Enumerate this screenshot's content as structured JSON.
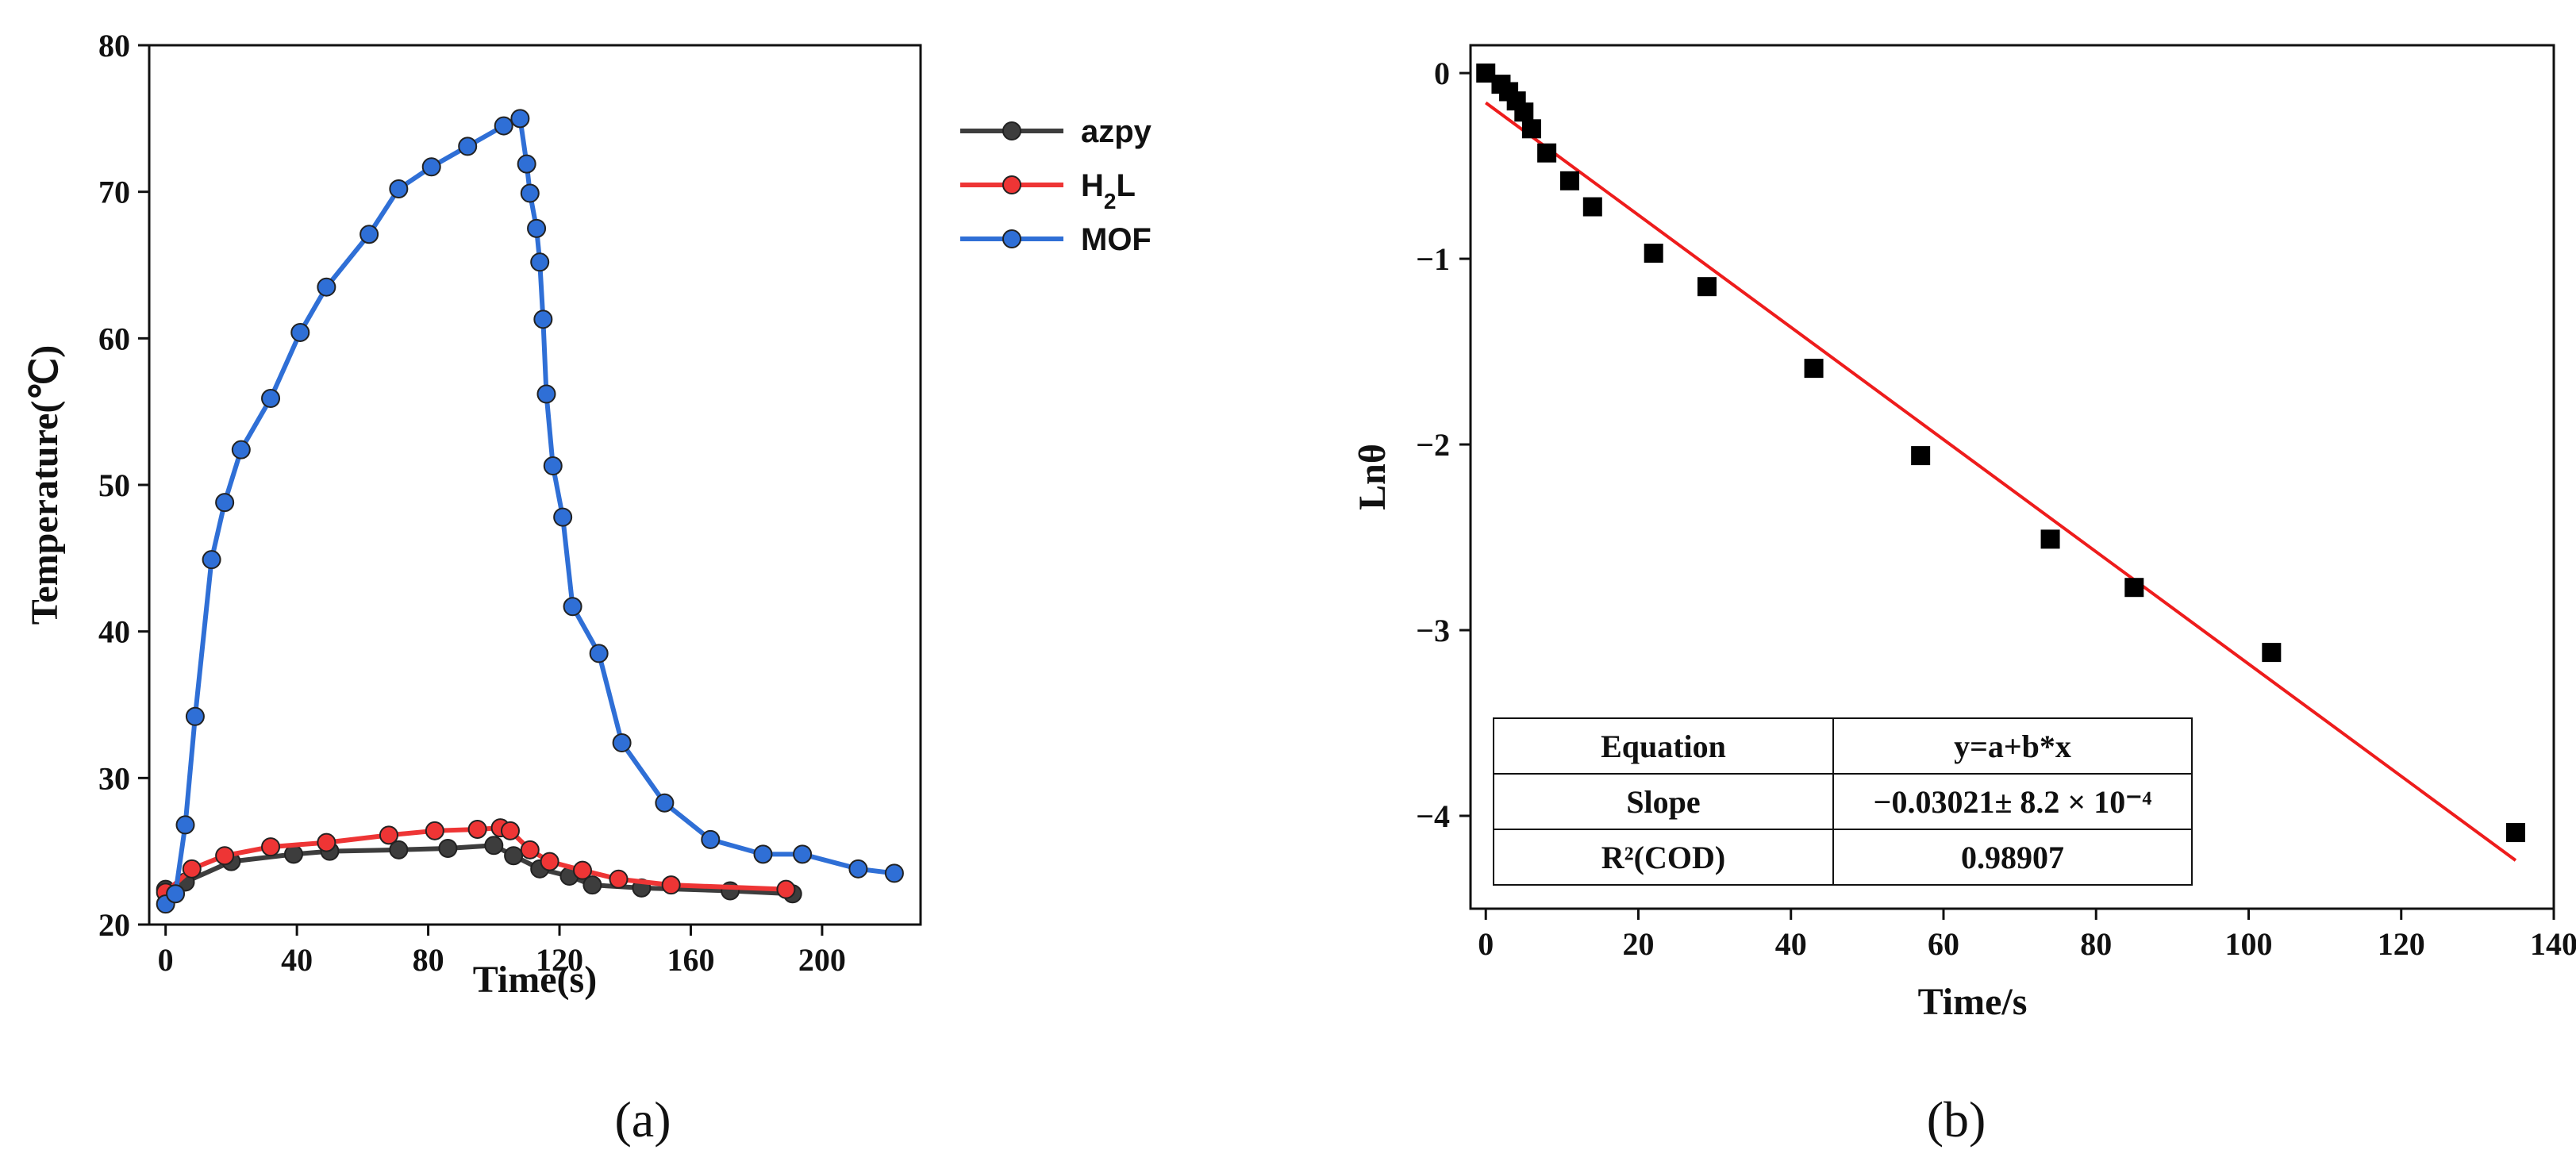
{
  "chart_data": [
    {
      "type": "line",
      "panel_label": "(a)",
      "xlabel": "Time(s)",
      "ylabel": "Temperature(℃)",
      "xlim": [
        -5,
        230
      ],
      "ylim": [
        20,
        80
      ],
      "xticks": [
        0,
        40,
        80,
        120,
        160,
        200
      ],
      "yticks": [
        20,
        30,
        40,
        50,
        60,
        70,
        80
      ],
      "legend_position": "top-right",
      "series": [
        {
          "name": "azpy",
          "color": "#3d3d3d",
          "x": [
            0,
            6,
            20,
            39,
            50,
            71,
            86,
            100,
            106,
            114,
            123,
            130,
            145,
            172,
            191
          ],
          "y": [
            22.4,
            22.9,
            24.3,
            24.8,
            25.0,
            25.1,
            25.2,
            25.4,
            24.7,
            23.8,
            23.3,
            22.7,
            22.5,
            22.3,
            22.1
          ]
        },
        {
          "name": "H2L",
          "color": "#ee3535",
          "x": [
            0,
            8,
            18,
            32,
            49,
            68,
            82,
            95,
            102,
            105,
            111,
            117,
            127,
            138,
            154,
            189
          ],
          "y": [
            22.2,
            23.8,
            24.7,
            25.3,
            25.6,
            26.1,
            26.4,
            26.5,
            26.6,
            26.4,
            25.1,
            24.3,
            23.7,
            23.1,
            22.7,
            22.4
          ]
        },
        {
          "name": "MOF",
          "color": "#2f6fd6",
          "x": [
            0,
            3,
            6,
            9,
            14,
            18,
            23,
            32,
            41,
            49,
            62,
            71,
            81,
            92,
            103,
            108,
            110,
            111,
            113,
            114,
            115,
            116,
            118,
            121,
            124,
            132,
            139,
            152,
            166,
            182,
            194,
            211,
            222
          ],
          "y": [
            21.4,
            22.1,
            26.8,
            34.2,
            44.9,
            48.8,
            52.4,
            55.9,
            60.4,
            63.5,
            67.1,
            70.2,
            71.7,
            73.1,
            74.5,
            75.0,
            71.9,
            69.9,
            67.5,
            65.2,
            61.3,
            56.2,
            51.3,
            47.8,
            41.7,
            38.5,
            32.4,
            28.3,
            25.8,
            24.8,
            24.8,
            23.8,
            23.5
          ]
        }
      ]
    },
    {
      "type": "scatter",
      "panel_label": "(b)",
      "xlabel": "Time/s",
      "ylabel": "Lnθ",
      "xlim": [
        -2,
        140
      ],
      "ylim": [
        -4.5,
        0.15
      ],
      "xticks": [
        0,
        20,
        40,
        60,
        80,
        100,
        120,
        140
      ],
      "yticks": [
        0,
        -1,
        -2,
        -3,
        -4
      ],
      "ytick_labels": [
        "0",
        "−1",
        "−2",
        "−3",
        "−4"
      ],
      "points": {
        "x": [
          0,
          2,
          3,
          4,
          5,
          6,
          8,
          11,
          14,
          22,
          29,
          43,
          57,
          74,
          85,
          103,
          135
        ],
        "y": [
          0,
          -0.06,
          -0.1,
          -0.15,
          -0.21,
          -0.3,
          -0.43,
          -0.58,
          -0.72,
          -0.97,
          -1.15,
          -1.59,
          -2.06,
          -2.51,
          -2.77,
          -3.12,
          -4.09
        ],
        "color": "#000000"
      },
      "fit": {
        "x": [
          0,
          135
        ],
        "y": [
          -0.16,
          -4.24
        ],
        "color": "#ee1c1c"
      },
      "fit_table": {
        "rows": [
          [
            "Equation",
            "y=a+b*x"
          ],
          [
            "Slope",
            "−0.03021± 8.2 × 10⁻⁴"
          ],
          [
            "R²(COD)",
            "0.98907"
          ]
        ]
      }
    }
  ]
}
